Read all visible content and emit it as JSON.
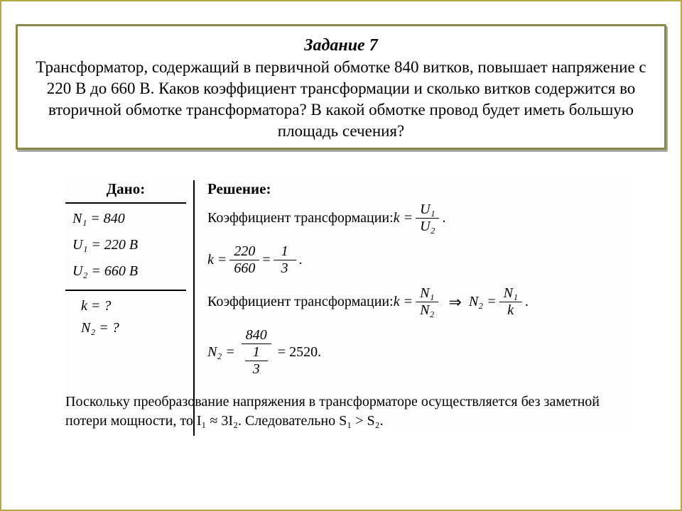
{
  "colors": {
    "outer_border": "#b5a642",
    "frame_border": "#8a8a46",
    "shadow": "rgba(0,0,0,0.35)",
    "text": "#000000",
    "background": "#ffffff"
  },
  "typography": {
    "base_family": "Times New Roman",
    "math_family": "Cambria Math",
    "title_pt": 24,
    "body_pt": 23,
    "math_pt": 20,
    "note_pt": 20
  },
  "title": "Задание 7",
  "problem": "Трансформатор, содержащий в первичной обмотке 840 витков, повышает напряжение с 220 В до 660 В. Каков коэффициент трансформации и сколько витков содержится во вторичной обмотке трансформатора? В какой обмотке провод будет иметь большую площадь сечения?",
  "given_header": "Дано:",
  "solution_header": "Решение:",
  "given": {
    "n1_label": "N₁ = 840",
    "u1_label": "U₁ = 220 В",
    "u2_label": "U₂ = 660 В",
    "q_k": "k = ?",
    "q_n2": "N₂ = ?"
  },
  "solution": {
    "line1_text": "Коэффициент трансформации: ",
    "line1_eq_lhs": "k =",
    "line1_frac_num": "U₁",
    "line1_frac_den": "U₂",
    "line2_lhs": "k =",
    "line2_frac1_num": "220",
    "line2_frac1_den": "660",
    "line2_eq": "=",
    "line2_frac2_num": "1",
    "line2_frac2_den": "3",
    "line3_text": "Коэффициент трансформации: ",
    "line3_eq_lhs": "k =",
    "line3_frac_num": "N₁",
    "line3_frac_den": "N₂",
    "line3_arrow": "⇒",
    "line3_rhs_lhs": "N₂ =",
    "line3_rhs_frac_num": "N₁",
    "line3_rhs_frac_den": "k",
    "line4_lhs": "N₂ =",
    "line4_frac_num": "840",
    "line4_frac_den_num": "1",
    "line4_frac_den_den": "3",
    "line4_result": "= 2520."
  },
  "note": "Поскольку преобразование напряжения в трансформаторе осуществляется без заметной потери мощности, то I₁ ≈ 3I₂. Следовательно S₁ > S₂.",
  "dot": "."
}
